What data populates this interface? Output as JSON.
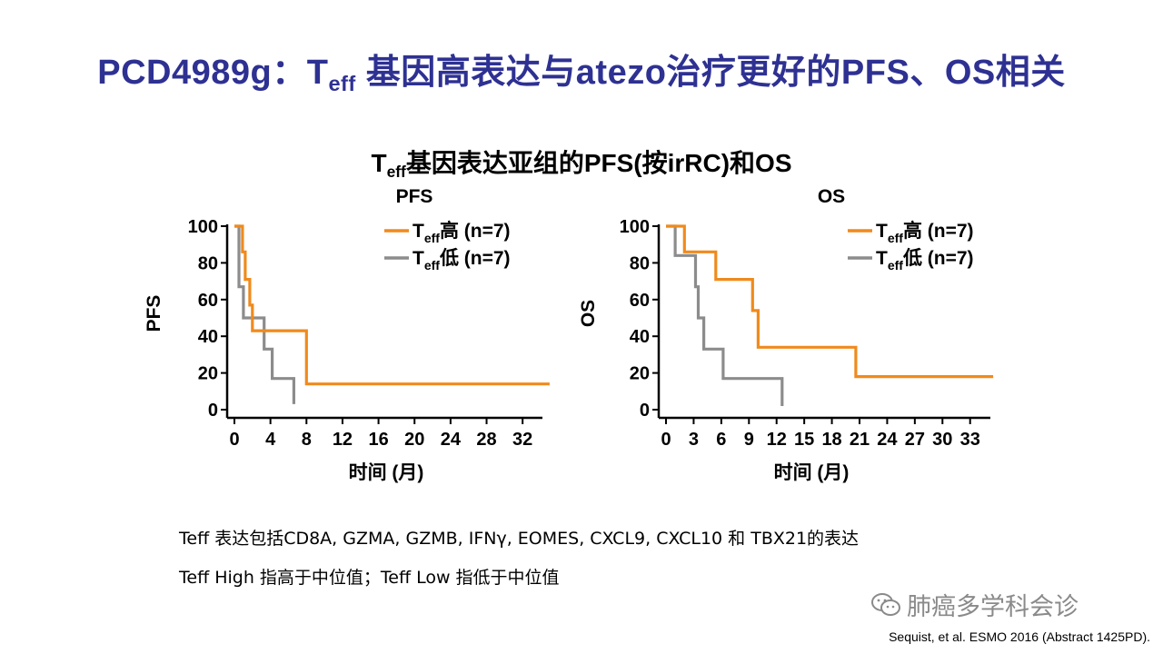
{
  "slide": {
    "title_pre": "PCD4989g：T",
    "title_sub": "eff",
    "title_post": " 基因高表达与atezo治疗更好的PFS、OS相关",
    "subtitle_pre": "T",
    "subtitle_sub": "eff",
    "subtitle_post": "基因表达亚组的PFS(按irRC)和OS",
    "note1": "Teff 表达包括CD8A, GZMA, GZMB, IFNγ, EOMES, CXCL9, CXCL10 和 TBX21的表达",
    "note2": "Teff High 指高于中位值；Teff Low 指低于中位值",
    "watermark": "肺癌多学科会诊",
    "watermark_icon": "wechat-icon",
    "citation": "Sequist, et al. ESMO 2016 (Abstract 1425PD)."
  },
  "colors": {
    "title": "#2e3192",
    "high": "#f08a1c",
    "low": "#8c8c8c"
  },
  "chart_data": [
    {
      "type": "line",
      "title": "PFS",
      "xlabel": "时间 (月)",
      "ylabel": "PFS",
      "xlim": [
        0,
        34
      ],
      "ylim": [
        0,
        100
      ],
      "xticks": [
        0,
        4,
        8,
        12,
        16,
        20,
        24,
        28,
        32
      ],
      "yticks": [
        0,
        20,
        40,
        60,
        80,
        100
      ],
      "legend_position": "top-right",
      "series": [
        {
          "name": "Teff高 (n=7)",
          "legend_main": "T",
          "legend_sub": "eff",
          "legend_post": "高 (n=7)",
          "color": "#f08a1c",
          "steps": [
            [
              0,
              100
            ],
            [
              0.9,
              100
            ],
            [
              0.9,
              86
            ],
            [
              1.2,
              86
            ],
            [
              1.2,
              71
            ],
            [
              1.7,
              71
            ],
            [
              1.7,
              57
            ],
            [
              2.0,
              57
            ],
            [
              2.0,
              43
            ],
            [
              8.0,
              43
            ],
            [
              8.0,
              14
            ],
            [
              35.0,
              14
            ]
          ]
        },
        {
          "name": "Teff低 (n=7)",
          "legend_main": "T",
          "legend_sub": "eff",
          "legend_post": "低 (n=7)",
          "color": "#8c8c8c",
          "steps": [
            [
              0,
              100
            ],
            [
              0.5,
              100
            ],
            [
              0.5,
              67
            ],
            [
              1.0,
              67
            ],
            [
              1.0,
              50
            ],
            [
              3.3,
              50
            ],
            [
              3.3,
              33
            ],
            [
              4.2,
              33
            ],
            [
              4.2,
              17
            ],
            [
              6.6,
              17
            ],
            [
              6.6,
              3
            ]
          ]
        }
      ]
    },
    {
      "type": "line",
      "title": "OS",
      "xlabel": "时间 (月)",
      "ylabel": "OS",
      "xlim": [
        0,
        35
      ],
      "ylim": [
        0,
        100
      ],
      "xticks": [
        0,
        3,
        6,
        9,
        12,
        15,
        18,
        21,
        24,
        27,
        30,
        33
      ],
      "yticks": [
        0,
        20,
        40,
        60,
        80,
        100
      ],
      "legend_position": "top-right",
      "series": [
        {
          "name": "Teff高 (n=7)",
          "legend_main": "T",
          "legend_sub": "eff",
          "legend_post": "高 (n=7)",
          "color": "#f08a1c",
          "steps": [
            [
              0,
              100
            ],
            [
              2.0,
              100
            ],
            [
              2.0,
              86
            ],
            [
              5.4,
              86
            ],
            [
              5.4,
              71
            ],
            [
              9.4,
              71
            ],
            [
              9.4,
              54
            ],
            [
              10.0,
              54
            ],
            [
              10.0,
              34
            ],
            [
              20.6,
              34
            ],
            [
              20.6,
              18
            ],
            [
              35.5,
              18
            ]
          ]
        },
        {
          "name": "Teff低 (n=7)",
          "legend_main": "T",
          "legend_sub": "eff",
          "legend_post": "低 (n=7)",
          "color": "#8c8c8c",
          "steps": [
            [
              0,
              100
            ],
            [
              1.0,
              100
            ],
            [
              1.0,
              84
            ],
            [
              3.2,
              84
            ],
            [
              3.2,
              67
            ],
            [
              3.5,
              67
            ],
            [
              3.5,
              50
            ],
            [
              4.1,
              50
            ],
            [
              4.1,
              33
            ],
            [
              6.2,
              33
            ],
            [
              6.2,
              17
            ],
            [
              12.6,
              17
            ],
            [
              12.6,
              2
            ]
          ]
        }
      ]
    }
  ]
}
